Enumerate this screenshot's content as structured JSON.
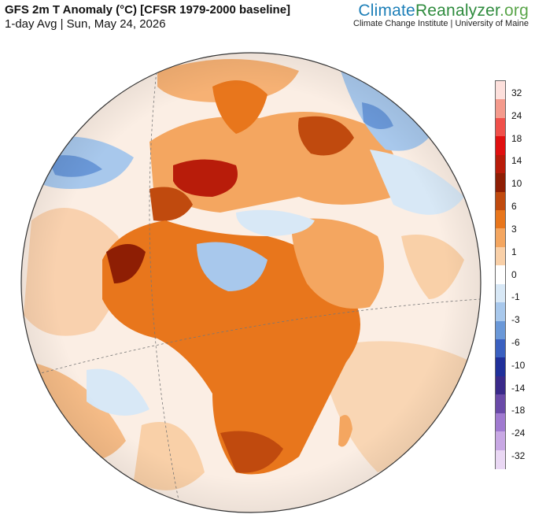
{
  "header": {
    "title": "GFS 2m T Anomaly (°C) [CFSR 1979-2000 baseline]",
    "subtitle": "1-day Avg | Sun, May 24, 2026"
  },
  "brand": {
    "name_part1": "Climate",
    "name_part2": "Reanalyzer",
    "name_part3": ".org",
    "subtitle": "Climate Change Institute | University of Maine"
  },
  "legend": {
    "unit": "°C",
    "ticks": [
      "32",
      "24",
      "18",
      "14",
      "10",
      "6",
      "3",
      "1",
      "0",
      "-1",
      "-3",
      "-6",
      "-10",
      "-14",
      "-18",
      "-24",
      "-32"
    ],
    "colors": [
      "#fde0dc",
      "#f49a8c",
      "#f0504a",
      "#e01010",
      "#b81c0a",
      "#8e1e04",
      "#c04a0e",
      "#e8761c",
      "#f4a660",
      "#f9d0a8",
      "#ffffff",
      "#d8e8f6",
      "#a8c8ec",
      "#6a98d8",
      "#3a60c0",
      "#20309a",
      "#3a2a8a",
      "#6a4aa8",
      "#a07ad0",
      "#c8a8e4",
      "#ead8f4"
    ]
  },
  "map": {
    "projection": "orthographic",
    "center": "Africa / Europe",
    "regions": [
      "Europe",
      "Africa",
      "Middle East",
      "Atlantic Ocean",
      "Indian Ocean"
    ]
  }
}
